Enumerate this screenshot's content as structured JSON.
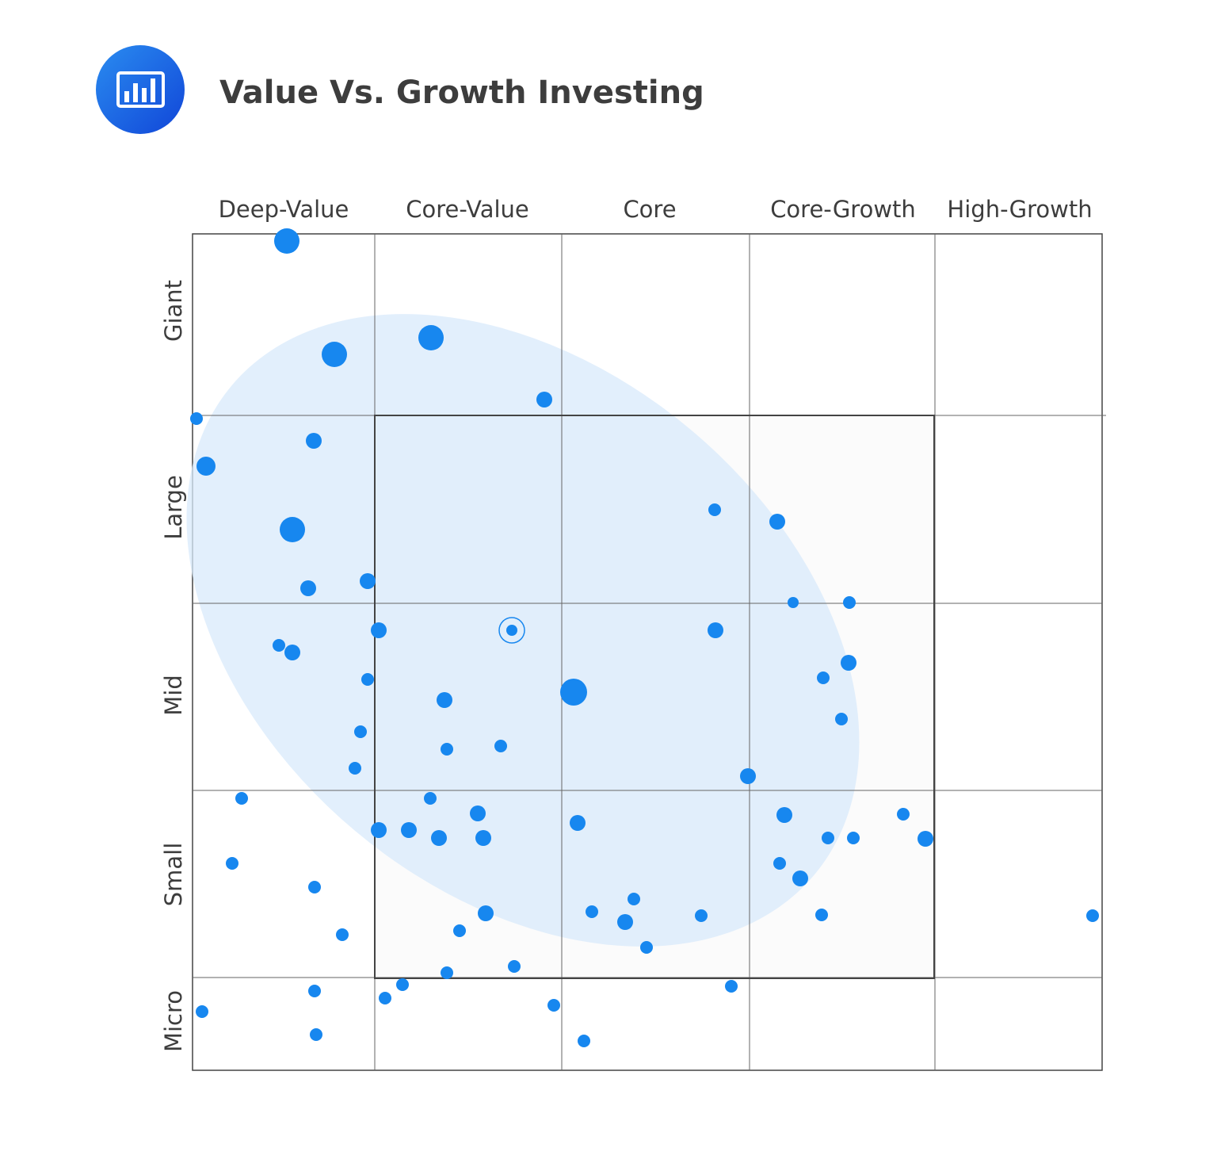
{
  "header": {
    "title": "Value Vs. Growth Investing"
  },
  "columns": [
    "Deep-Value",
    "Core-Value",
    "Core",
    "Core-Growth",
    "High-Growth"
  ],
  "rows": [
    "Giant",
    "Large",
    "Mid",
    "Small",
    "Micro"
  ]
}
